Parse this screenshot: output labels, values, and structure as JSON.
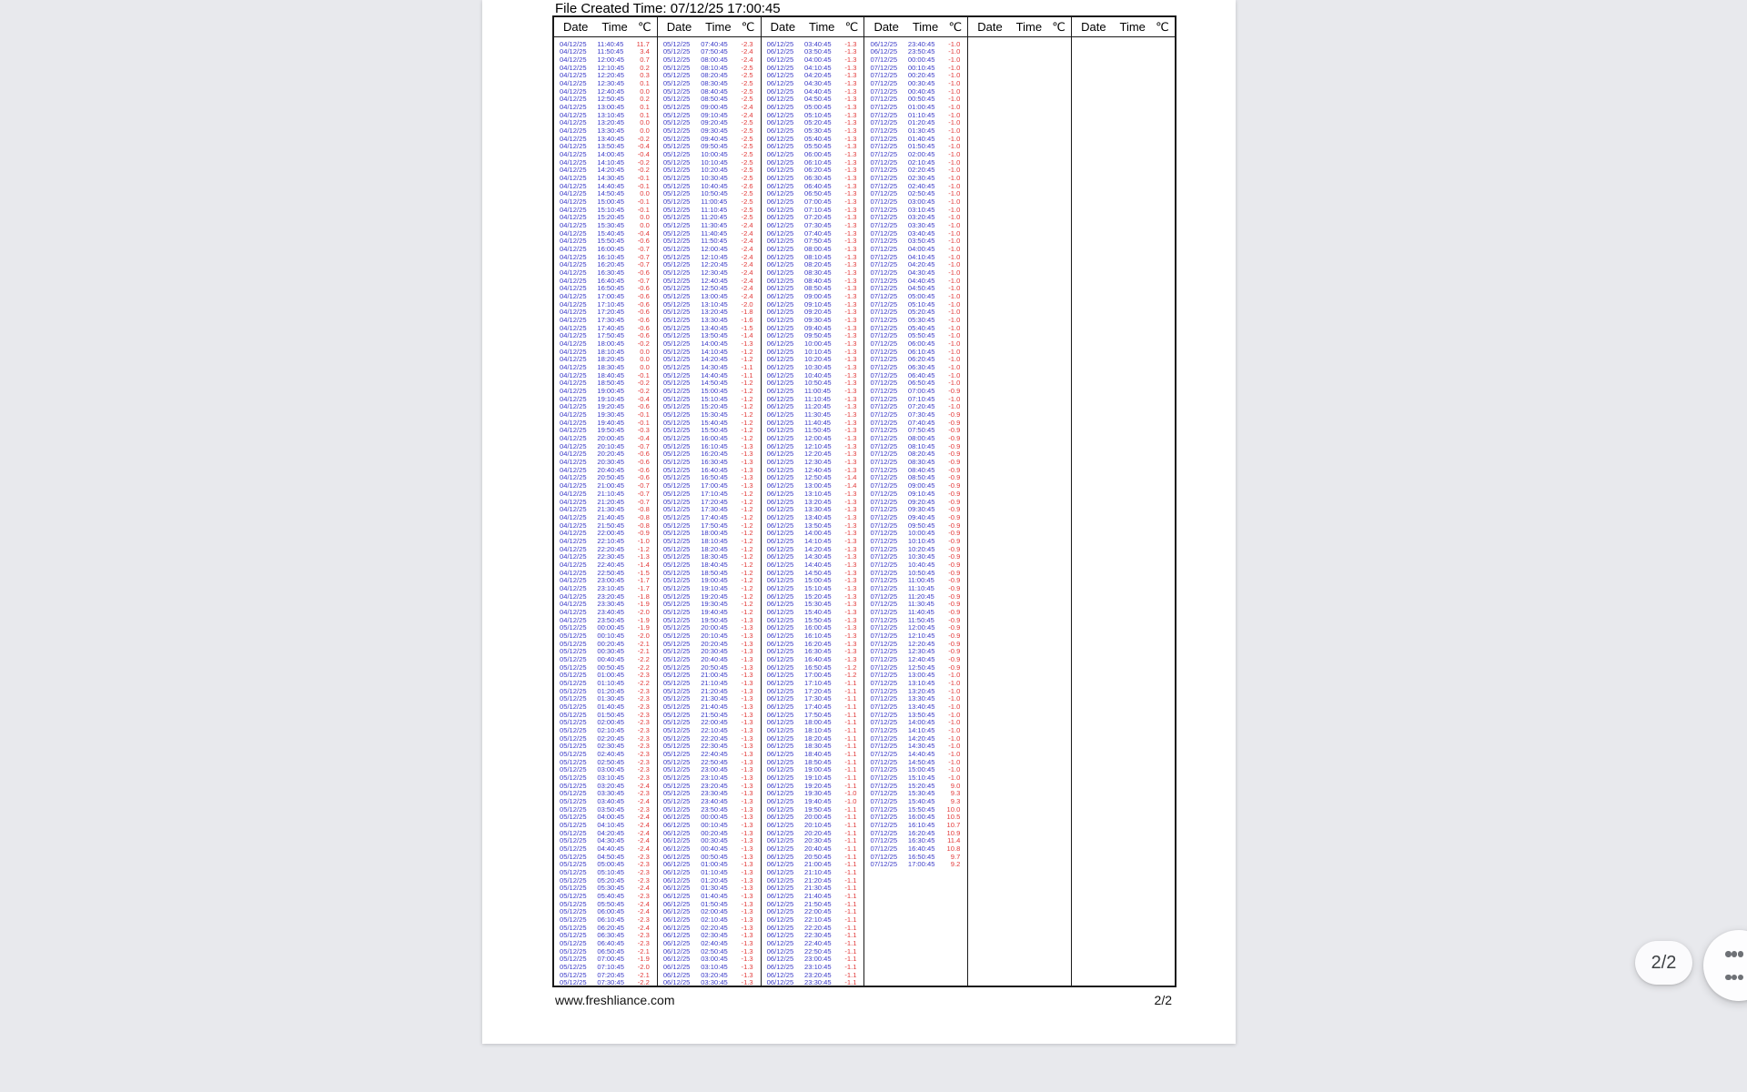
{
  "document": {
    "created_time_label": "File Created Time: 07/12/25 17:00:45",
    "footer_url": "www.freshliance.com",
    "footer_page": "2/2"
  },
  "overlay": {
    "page_indicator": "2/2",
    "grid_button_icon": "grid-dots"
  },
  "colors": {
    "datetime_text": "#3c3cc8",
    "temp_text": "#e23a3a",
    "app_background": "#e8e9ed",
    "page_background": "#ffffff",
    "chip_text": "#3c4043"
  },
  "table": {
    "header": {
      "date": "Date",
      "time": "Time",
      "temp": "℃"
    },
    "group_count": 6,
    "columns": [
      [
        "04/12/25|11:40:45|11.7",
        "04/12/25|11:50:45|3.4",
        "04/12/25|12:00:45|0.7",
        "04/12/25|12:10:45|0.2",
        "04/12/25|12:20:45|0.3",
        "04/12/25|12:30:45|0.1",
        "04/12/25|12:40:45|0.0",
        "04/12/25|12:50:45|0.2",
        "04/12/25|13:00:45|0.1",
        "04/12/25|13:10:45|0.1",
        "04/12/25|13:20:45|0.0",
        "04/12/25|13:30:45|0.0",
        "04/12/25|13:40:45|-0.2",
        "04/12/25|13:50:45|-0.4",
        "04/12/25|14:00:45|-0.4",
        "04/12/25|14:10:45|-0.2",
        "04/12/25|14:20:45|-0.2",
        "04/12/25|14:30:45|-0.1",
        "04/12/25|14:40:45|-0.1",
        "04/12/25|14:50:45|0.0",
        "04/12/25|15:00:45|-0.1",
        "04/12/25|15:10:45|-0.1",
        "04/12/25|15:20:45|0.0",
        "04/12/25|15:30:45|0.0",
        "04/12/25|15:40:45|-0.4",
        "04/12/25|15:50:45|-0.6",
        "04/12/25|16:00:45|-0.7",
        "04/12/25|16:10:45|-0.7",
        "04/12/25|16:20:45|-0.7",
        "04/12/25|16:30:45|-0.6",
        "04/12/25|16:40:45|-0.7",
        "04/12/25|16:50:45|-0.6",
        "04/12/25|17:00:45|-0.6",
        "04/12/25|17:10:45|-0.6",
        "04/12/25|17:20:45|-0.6",
        "04/12/25|17:30:45|-0.6",
        "04/12/25|17:40:45|-0.6",
        "04/12/25|17:50:45|-0.6",
        "04/12/25|18:00:45|-0.2",
        "04/12/25|18:10:45|0.0",
        "04/12/25|18:20:45|0.0",
        "04/12/25|18:30:45|0.0",
        "04/12/25|18:40:45|-0.1",
        "04/12/25|18:50:45|-0.2",
        "04/12/25|19:00:45|-0.2",
        "04/12/25|19:10:45|-0.4",
        "04/12/25|19:20:45|-0.6",
        "04/12/25|19:30:45|-0.1",
        "04/12/25|19:40:45|-0.1",
        "04/12/25|19:50:45|-0.3",
        "04/12/25|20:00:45|-0.4",
        "04/12/25|20:10:45|-0.7",
        "04/12/25|20:20:45|-0.6",
        "04/12/25|20:30:45|-0.6",
        "04/12/25|20:40:45|-0.6",
        "04/12/25|20:50:45|-0.6",
        "04/12/25|21:00:45|-0.7",
        "04/12/25|21:10:45|-0.7",
        "04/12/25|21:20:45|-0.7",
        "04/12/25|21:30:45|-0.8",
        "04/12/25|21:40:45|-0.8",
        "04/12/25|21:50:45|-0.8",
        "04/12/25|22:00:45|-0.9",
        "04/12/25|22:10:45|-1.0",
        "04/12/25|22:20:45|-1.2",
        "04/12/25|22:30:45|-1.3",
        "04/12/25|22:40:45|-1.4",
        "04/12/25|22:50:45|-1.5",
        "04/12/25|23:00:45|-1.7",
        "04/12/25|23:10:45|-1.7",
        "04/12/25|23:20:45|-1.8",
        "04/12/25|23:30:45|-1.9",
        "04/12/25|23:40:45|-2.0",
        "04/12/25|23:50:45|-1.9",
        "05/12/25|00:00:45|-1.9",
        "05/12/25|00:10:45|-2.0",
        "05/12/25|00:20:45|-2.1",
        "05/12/25|00:30:45|-2.1",
        "05/12/25|00:40:45|-2.2",
        "05/12/25|00:50:45|-2.2",
        "05/12/25|01:00:45|-2.3",
        "05/12/25|01:10:45|-2.2",
        "05/12/25|01:20:45|-2.3",
        "05/12/25|01:30:45|-2.3",
        "05/12/25|01:40:45|-2.3",
        "05/12/25|01:50:45|-2.3",
        "05/12/25|02:00:45|-2.3",
        "05/12/25|02:10:45|-2.3",
        "05/12/25|02:20:45|-2.3",
        "05/12/25|02:30:45|-2.3",
        "05/12/25|02:40:45|-2.3",
        "05/12/25|02:50:45|-2.3",
        "05/12/25|03:00:45|-2.3",
        "05/12/25|03:10:45|-2.3",
        "05/12/25|03:20:45|-2.4",
        "05/12/25|03:30:45|-2.3",
        "05/12/25|03:40:45|-2.4",
        "05/12/25|03:50:45|-2.3",
        "05/12/25|04:00:45|-2.4",
        "05/12/25|04:10:45|-2.4",
        "05/12/25|04:20:45|-2.4",
        "05/12/25|04:30:45|-2.4",
        "05/12/25|04:40:45|-2.4",
        "05/12/25|04:50:45|-2.3",
        "05/12/25|05:00:45|-2.3",
        "05/12/25|05:10:45|-2.3",
        "05/12/25|05:20:45|-2.3",
        "05/12/25|05:30:45|-2.4",
        "05/12/25|05:40:45|-2.3",
        "05/12/25|05:50:45|-2.4",
        "05/12/25|06:00:45|-2.4",
        "05/12/25|06:10:45|-2.3",
        "05/12/25|06:20:45|-2.4",
        "05/12/25|06:30:45|-2.3",
        "05/12/25|06:40:45|-2.3",
        "05/12/25|06:50:45|-2.1",
        "05/12/25|07:00:45|-1.9",
        "05/12/25|07:10:45|-2.0",
        "05/12/25|07:20:45|-2.1",
        "05/12/25|07:30:45|-2.2"
      ],
      [
        "05/12/25|07:40:45|-2.3",
        "05/12/25|07:50:45|-2.4",
        "05/12/25|08:00:45|-2.4",
        "05/12/25|08:10:45|-2.5",
        "05/12/25|08:20:45|-2.5",
        "05/12/25|08:30:45|-2.5",
        "05/12/25|08:40:45|-2.5",
        "05/12/25|08:50:45|-2.5",
        "05/12/25|09:00:45|-2.4",
        "05/12/25|09:10:45|-2.4",
        "05/12/25|09:20:45|-2.5",
        "05/12/25|09:30:45|-2.5",
        "05/12/25|09:40:45|-2.5",
        "05/12/25|09:50:45|-2.5",
        "05/12/25|10:00:45|-2.5",
        "05/12/25|10:10:45|-2.5",
        "05/12/25|10:20:45|-2.5",
        "05/12/25|10:30:45|-2.5",
        "05/12/25|10:40:45|-2.6",
        "05/12/25|10:50:45|-2.5",
        "05/12/25|11:00:45|-2.5",
        "05/12/25|11:10:45|-2.5",
        "05/12/25|11:20:45|-2.5",
        "05/12/25|11:30:45|-2.4",
        "05/12/25|11:40:45|-2.4",
        "05/12/25|11:50:45|-2.4",
        "05/12/25|12:00:45|-2.4",
        "05/12/25|12:10:45|-2.4",
        "05/12/25|12:20:45|-2.4",
        "05/12/25|12:30:45|-2.4",
        "05/12/25|12:40:45|-2.4",
        "05/12/25|12:50:45|-2.4",
        "05/12/25|13:00:45|-2.4",
        "05/12/25|13:10:45|-2.0",
        "05/12/25|13:20:45|-1.8",
        "05/12/25|13:30:45|-1.6",
        "05/12/25|13:40:45|-1.5",
        "05/12/25|13:50:45|-1.4",
        "05/12/25|14:00:45|-1.3",
        "05/12/25|14:10:45|-1.2",
        "05/12/25|14:20:45|-1.2",
        "05/12/25|14:30:45|-1.1",
        "05/12/25|14:40:45|-1.1",
        "05/12/25|14:50:45|-1.2",
        "05/12/25|15:00:45|-1.2",
        "05/12/25|15:10:45|-1.2",
        "05/12/25|15:20:45|-1.2",
        "05/12/25|15:30:45|-1.2",
        "05/12/25|15:40:45|-1.2",
        "05/12/25|15:50:45|-1.2",
        "05/12/25|16:00:45|-1.2",
        "05/12/25|16:10:45|-1.3",
        "05/12/25|16:20:45|-1.3",
        "05/12/25|16:30:45|-1.3",
        "05/12/25|16:40:45|-1.3",
        "05/12/25|16:50:45|-1.3",
        "05/12/25|17:00:45|-1.3",
        "05/12/25|17:10:45|-1.2",
        "05/12/25|17:20:45|-1.2",
        "05/12/25|17:30:45|-1.2",
        "05/12/25|17:40:45|-1.2",
        "05/12/25|17:50:45|-1.2",
        "05/12/25|18:00:45|-1.2",
        "05/12/25|18:10:45|-1.2",
        "05/12/25|18:20:45|-1.2",
        "05/12/25|18:30:45|-1.2",
        "05/12/25|18:40:45|-1.2",
        "05/12/25|18:50:45|-1.2",
        "05/12/25|19:00:45|-1.2",
        "05/12/25|19:10:45|-1.2",
        "05/12/25|19:20:45|-1.2",
        "05/12/25|19:30:45|-1.2",
        "05/12/25|19:40:45|-1.2",
        "05/12/25|19:50:45|-1.3",
        "05/12/25|20:00:45|-1.3",
        "05/12/25|20:10:45|-1.3",
        "05/12/25|20:20:45|-1.3",
        "05/12/25|20:30:45|-1.3",
        "05/12/25|20:40:45|-1.3",
        "05/12/25|20:50:45|-1.3",
        "05/12/25|21:00:45|-1.3",
        "05/12/25|21:10:45|-1.3",
        "05/12/25|21:20:45|-1.3",
        "05/12/25|21:30:45|-1.3",
        "05/12/25|21:40:45|-1.3",
        "05/12/25|21:50:45|-1.3",
        "05/12/25|22:00:45|-1.3",
        "05/12/25|22:10:45|-1.3",
        "05/12/25|22:20:45|-1.3",
        "05/12/25|22:30:45|-1.3",
        "05/12/25|22:40:45|-1.3",
        "05/12/25|22:50:45|-1.3",
        "05/12/25|23:00:45|-1.3",
        "05/12/25|23:10:45|-1.3",
        "05/12/25|23:20:45|-1.3",
        "05/12/25|23:30:45|-1.3",
        "05/12/25|23:40:45|-1.3",
        "05/12/25|23:50:45|-1.3",
        "06/12/25|00:00:45|-1.3",
        "06/12/25|00:10:45|-1.3",
        "06/12/25|00:20:45|-1.3",
        "06/12/25|00:30:45|-1.3",
        "06/12/25|00:40:45|-1.3",
        "06/12/25|00:50:45|-1.3",
        "06/12/25|01:00:45|-1.3",
        "06/12/25|01:10:45|-1.3",
        "06/12/25|01:20:45|-1.3",
        "06/12/25|01:30:45|-1.3",
        "06/12/25|01:40:45|-1.3",
        "06/12/25|01:50:45|-1.3",
        "06/12/25|02:00:45|-1.3",
        "06/12/25|02:10:45|-1.3",
        "06/12/25|02:20:45|-1.3",
        "06/12/25|02:30:45|-1.3",
        "06/12/25|02:40:45|-1.3",
        "06/12/25|02:50:45|-1.3",
        "06/12/25|03:00:45|-1.3",
        "06/12/25|03:10:45|-1.3",
        "06/12/25|03:20:45|-1.3",
        "06/12/25|03:30:45|-1.3"
      ],
      [
        "06/12/25|03:40:45|-1.3",
        "06/12/25|03:50:45|-1.3",
        "06/12/25|04:00:45|-1.3",
        "06/12/25|04:10:45|-1.3",
        "06/12/25|04:20:45|-1.3",
        "06/12/25|04:30:45|-1.3",
        "06/12/25|04:40:45|-1.3",
        "06/12/25|04:50:45|-1.3",
        "06/12/25|05:00:45|-1.3",
        "06/12/25|05:10:45|-1.3",
        "06/12/25|05:20:45|-1.3",
        "06/12/25|05:30:45|-1.3",
        "06/12/25|05:40:45|-1.3",
        "06/12/25|05:50:45|-1.3",
        "06/12/25|06:00:45|-1.3",
        "06/12/25|06:10:45|-1.3",
        "06/12/25|06:20:45|-1.3",
        "06/12/25|06:30:45|-1.3",
        "06/12/25|06:40:45|-1.3",
        "06/12/25|06:50:45|-1.3",
        "06/12/25|07:00:45|-1.3",
        "06/12/25|07:10:45|-1.3",
        "06/12/25|07:20:45|-1.3",
        "06/12/25|07:30:45|-1.3",
        "06/12/25|07:40:45|-1.3",
        "06/12/25|07:50:45|-1.3",
        "06/12/25|08:00:45|-1.3",
        "06/12/25|08:10:45|-1.3",
        "06/12/25|08:20:45|-1.3",
        "06/12/25|08:30:45|-1.3",
        "06/12/25|08:40:45|-1.3",
        "06/12/25|08:50:45|-1.3",
        "06/12/25|09:00:45|-1.3",
        "06/12/25|09:10:45|-1.3",
        "06/12/25|09:20:45|-1.3",
        "06/12/25|09:30:45|-1.3",
        "06/12/25|09:40:45|-1.3",
        "06/12/25|09:50:45|-1.3",
        "06/12/25|10:00:45|-1.3",
        "06/12/25|10:10:45|-1.3",
        "06/12/25|10:20:45|-1.3",
        "06/12/25|10:30:45|-1.3",
        "06/12/25|10:40:45|-1.3",
        "06/12/25|10:50:45|-1.3",
        "06/12/25|11:00:45|-1.3",
        "06/12/25|11:10:45|-1.3",
        "06/12/25|11:20:45|-1.3",
        "06/12/25|11:30:45|-1.3",
        "06/12/25|11:40:45|-1.3",
        "06/12/25|11:50:45|-1.3",
        "06/12/25|12:00:45|-1.3",
        "06/12/25|12:10:45|-1.3",
        "06/12/25|12:20:45|-1.3",
        "06/12/25|12:30:45|-1.3",
        "06/12/25|12:40:45|-1.3",
        "06/12/25|12:50:45|-1.4",
        "06/12/25|13:00:45|-1.4",
        "06/12/25|13:10:45|-1.3",
        "06/12/25|13:20:45|-1.3",
        "06/12/25|13:30:45|-1.3",
        "06/12/25|13:40:45|-1.3",
        "06/12/25|13:50:45|-1.3",
        "06/12/25|14:00:45|-1.3",
        "06/12/25|14:10:45|-1.3",
        "06/12/25|14:20:45|-1.3",
        "06/12/25|14:30:45|-1.3",
        "06/12/25|14:40:45|-1.3",
        "06/12/25|14:50:45|-1.3",
        "06/12/25|15:00:45|-1.3",
        "06/12/25|15:10:45|-1.3",
        "06/12/25|15:20:45|-1.3",
        "06/12/25|15:30:45|-1.3",
        "06/12/25|15:40:45|-1.3",
        "06/12/25|15:50:45|-1.3",
        "06/12/25|16:00:45|-1.3",
        "06/12/25|16:10:45|-1.3",
        "06/12/25|16:20:45|-1.3",
        "06/12/25|16:30:45|-1.3",
        "06/12/25|16:40:45|-1.3",
        "06/12/25|16:50:45|-1.2",
        "06/12/25|17:00:45|-1.2",
        "06/12/25|17:10:45|-1.1",
        "06/12/25|17:20:45|-1.1",
        "06/12/25|17:30:45|-1.1",
        "06/12/25|17:40:45|-1.1",
        "06/12/25|17:50:45|-1.1",
        "06/12/25|18:00:45|-1.1",
        "06/12/25|18:10:45|-1.1",
        "06/12/25|18:20:45|-1.1",
        "06/12/25|18:30:45|-1.1",
        "06/12/25|18:40:45|-1.1",
        "06/12/25|18:50:45|-1.1",
        "06/12/25|19:00:45|-1.1",
        "06/12/25|19:10:45|-1.1",
        "06/12/25|19:20:45|-1.1",
        "06/12/25|19:30:45|-1.0",
        "06/12/25|19:40:45|-1.0",
        "06/12/25|19:50:45|-1.1",
        "06/12/25|20:00:45|-1.1",
        "06/12/25|20:10:45|-1.1",
        "06/12/25|20:20:45|-1.1",
        "06/12/25|20:30:45|-1.1",
        "06/12/25|20:40:45|-1.1",
        "06/12/25|20:50:45|-1.1",
        "06/12/25|21:00:45|-1.1",
        "06/12/25|21:10:45|-1.1",
        "06/12/25|21:20:45|-1.1",
        "06/12/25|21:30:45|-1.1",
        "06/12/25|21:40:45|-1.1",
        "06/12/25|21:50:45|-1.1",
        "06/12/25|22:00:45|-1.1",
        "06/12/25|22:10:45|-1.1",
        "06/12/25|22:20:45|-1.1",
        "06/12/25|22:30:45|-1.1",
        "06/12/25|22:40:45|-1.1",
        "06/12/25|22:50:45|-1.1",
        "06/12/25|23:00:45|-1.1",
        "06/12/25|23:10:45|-1.1",
        "06/12/25|23:20:45|-1.1",
        "06/12/25|23:30:45|-1.1"
      ],
      [
        "06/12/25|23:40:45|-1.0",
        "06/12/25|23:50:45|-1.0",
        "07/12/25|00:00:45|-1.0",
        "07/12/25|00:10:45|-1.0",
        "07/12/25|00:20:45|-1.0",
        "07/12/25|00:30:45|-1.0",
        "07/12/25|00:40:45|-1.0",
        "07/12/25|00:50:45|-1.0",
        "07/12/25|01:00:45|-1.0",
        "07/12/25|01:10:45|-1.0",
        "07/12/25|01:20:45|-1.0",
        "07/12/25|01:30:45|-1.0",
        "07/12/25|01:40:45|-1.0",
        "07/12/25|01:50:45|-1.0",
        "07/12/25|02:00:45|-1.0",
        "07/12/25|02:10:45|-1.0",
        "07/12/25|02:20:45|-1.0",
        "07/12/25|02:30:45|-1.0",
        "07/12/25|02:40:45|-1.0",
        "07/12/25|02:50:45|-1.0",
        "07/12/25|03:00:45|-1.0",
        "07/12/25|03:10:45|-1.0",
        "07/12/25|03:20:45|-1.0",
        "07/12/25|03:30:45|-1.0",
        "07/12/25|03:40:45|-1.0",
        "07/12/25|03:50:45|-1.0",
        "07/12/25|04:00:45|-1.0",
        "07/12/25|04:10:45|-1.0",
        "07/12/25|04:20:45|-1.0",
        "07/12/25|04:30:45|-1.0",
        "07/12/25|04:40:45|-1.0",
        "07/12/25|04:50:45|-1.0",
        "07/12/25|05:00:45|-1.0",
        "07/12/25|05:10:45|-1.0",
        "07/12/25|05:20:45|-1.0",
        "07/12/25|05:30:45|-1.0",
        "07/12/25|05:40:45|-1.0",
        "07/12/25|05:50:45|-1.0",
        "07/12/25|06:00:45|-1.0",
        "07/12/25|06:10:45|-1.0",
        "07/12/25|06:20:45|-1.0",
        "07/12/25|06:30:45|-1.0",
        "07/12/25|06:40:45|-1.0",
        "07/12/25|06:50:45|-1.0",
        "07/12/25|07:00:45|-0.9",
        "07/12/25|07:10:45|-1.0",
        "07/12/25|07:20:45|-1.0",
        "07/12/25|07:30:45|-0.9",
        "07/12/25|07:40:45|-0.9",
        "07/12/25|07:50:45|-0.9",
        "07/12/25|08:00:45|-0.9",
        "07/12/25|08:10:45|-0.9",
        "07/12/25|08:20:45|-0.9",
        "07/12/25|08:30:45|-0.9",
        "07/12/25|08:40:45|-0.9",
        "07/12/25|08:50:45|-0.9",
        "07/12/25|09:00:45|-0.9",
        "07/12/25|09:10:45|-0.9",
        "07/12/25|09:20:45|-0.9",
        "07/12/25|09:30:45|-0.9",
        "07/12/25|09:40:45|-0.9",
        "07/12/25|09:50:45|-0.9",
        "07/12/25|10:00:45|-0.9",
        "07/12/25|10:10:45|-0.9",
        "07/12/25|10:20:45|-0.9",
        "07/12/25|10:30:45|-0.9",
        "07/12/25|10:40:45|-0.9",
        "07/12/25|10:50:45|-0.9",
        "07/12/25|11:00:45|-0.9",
        "07/12/25|11:10:45|-0.9",
        "07/12/25|11:20:45|-0.9",
        "07/12/25|11:30:45|-0.9",
        "07/12/25|11:40:45|-0.9",
        "07/12/25|11:50:45|-0.9",
        "07/12/25|12:00:45|-0.9",
        "07/12/25|12:10:45|-0.9",
        "07/12/25|12:20:45|-0.9",
        "07/12/25|12:30:45|-0.9",
        "07/12/25|12:40:45|-0.9",
        "07/12/25|12:50:45|-0.9",
        "07/12/25|13:00:45|-1.0",
        "07/12/25|13:10:45|-1.0",
        "07/12/25|13:20:45|-1.0",
        "07/12/25|13:30:45|-1.0",
        "07/12/25|13:40:45|-1.0",
        "07/12/25|13:50:45|-1.0",
        "07/12/25|14:00:45|-1.0",
        "07/12/25|14:10:45|-1.0",
        "07/12/25|14:20:45|-1.0",
        "07/12/25|14:30:45|-1.0",
        "07/12/25|14:40:45|-1.0",
        "07/12/25|14:50:45|-1.0",
        "07/12/25|15:00:45|-1.0",
        "07/12/25|15:10:45|-1.0",
        "07/12/25|15:20:45|9.0",
        "07/12/25|15:30:45|9.3",
        "07/12/25|15:40:45|9.3",
        "07/12/25|15:50:45|10.0",
        "07/12/25|16:00:45|10.5",
        "07/12/25|16:10:45|10.7",
        "07/12/25|16:20:45|10.9",
        "07/12/25|16:30:45|11.4",
        "07/12/25|16:40:45|10.8",
        "07/12/25|16:50:45|9.7",
        "07/12/25|17:00:45|9.2"
      ],
      [],
      []
    ]
  }
}
